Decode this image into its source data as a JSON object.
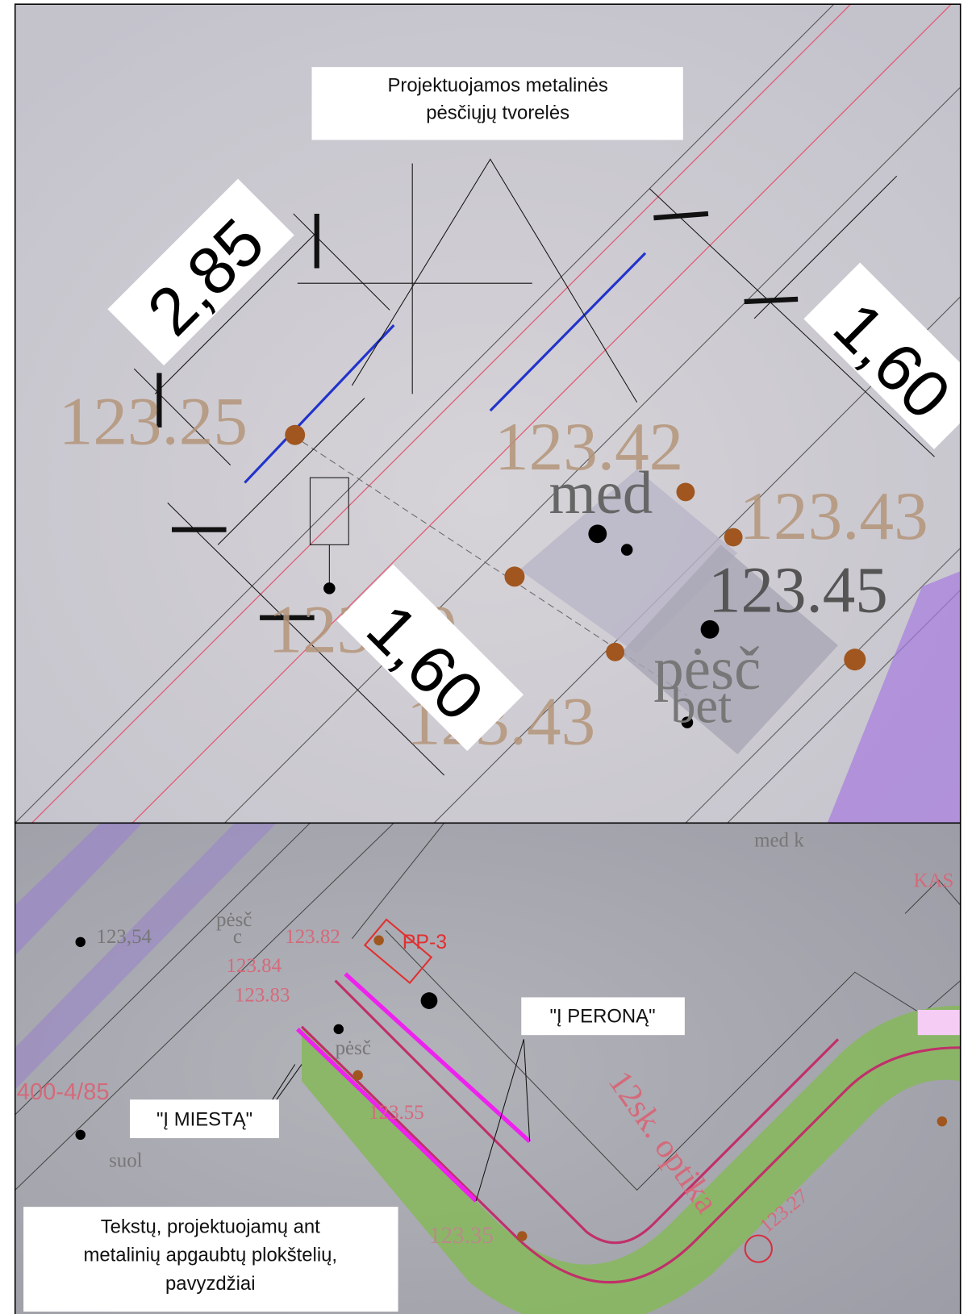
{
  "top_panel": {
    "callout": {
      "lines": [
        "Projektuojamos metalinės",
        "pėsčiųjų tvorelės"
      ]
    },
    "dimensions": [
      "2,85",
      "1,60",
      "1,60"
    ],
    "elevations": [
      "123.25",
      "123.42",
      "123.43",
      "123.29",
      "123.43",
      "123.45"
    ],
    "labels": [
      "med",
      "pėsč",
      "bet"
    ]
  },
  "bottom_panel": {
    "callouts": {
      "to_platform": "\"Į PERONĄ\"",
      "to_city": "\"Į MIESTĄ\"",
      "note": [
        "Tekstų, projektuojamų ant",
        "metalinių apgaubtų plokštelių,",
        "pavyzdžiai"
      ]
    },
    "labels": [
      "123,54",
      "pėsč",
      "c",
      "123.82",
      "123.84",
      "123.83",
      "PP-3",
      "KAS",
      "400-4/85",
      "pėsč",
      "123.55",
      "suol",
      "12sk. optika",
      "123.35",
      "123.27",
      "med k"
    ]
  }
}
